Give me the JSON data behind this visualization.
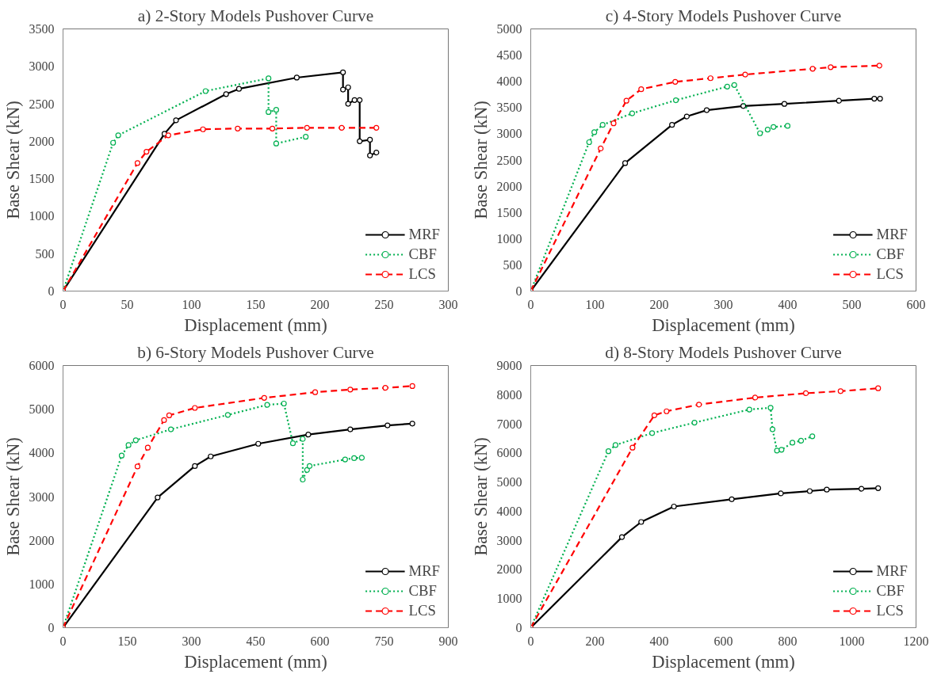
{
  "chart_data": [
    {
      "type": "line",
      "title": "a) 2-Story Models Pushover Curve",
      "xlabel": "Displacement (mm)",
      "ylabel": "Base Shear (kN)",
      "xlim": [
        0,
        300
      ],
      "xticks": [
        0,
        50,
        100,
        150,
        200,
        250,
        300
      ],
      "ylim": [
        0,
        3500
      ],
      "yticks": [
        0,
        500,
        1000,
        1500,
        2000,
        2500,
        3000,
        3500
      ],
      "grid": false,
      "legend": "bottom right",
      "marker": "circle",
      "series": [
        {
          "name": "MRF",
          "color": "#000000",
          "line_style": "solid",
          "x": [
            0,
            79,
            88,
            127,
            137,
            182,
            218,
            218,
            222,
            222,
            227,
            231,
            231,
            239,
            239,
            244
          ],
          "values": [
            0,
            2100,
            2280,
            2630,
            2700,
            2850,
            2920,
            2690,
            2720,
            2500,
            2550,
            2550,
            2000,
            2020,
            1810,
            1850
          ]
        },
        {
          "name": "CBF",
          "color": "#00b050",
          "line_style": "dotted",
          "x": [
            0,
            39,
            43,
            111,
            160,
            160,
            166,
            166,
            189
          ],
          "values": [
            0,
            1980,
            2080,
            2670,
            2840,
            2390,
            2420,
            1970,
            2060
          ]
        },
        {
          "name": "LCS",
          "color": "#ff0000",
          "line_style": "dashed",
          "x": [
            0,
            58,
            65,
            82,
            109,
            136,
            163,
            190,
            217,
            244
          ],
          "values": [
            0,
            1710,
            1860,
            2080,
            2160,
            2170,
            2170,
            2180,
            2180,
            2180
          ]
        }
      ]
    },
    {
      "type": "line",
      "title": "c) 4-Story Models Pushover Curve",
      "xlabel": "Displacement (mm)",
      "ylabel": "Base Shear (kN)",
      "xlim": [
        0,
        600
      ],
      "xticks": [
        0,
        100,
        200,
        300,
        400,
        500,
        600
      ],
      "ylim": [
        0,
        5000
      ],
      "yticks": [
        0,
        500,
        1000,
        1500,
        2000,
        2500,
        3000,
        3500,
        4000,
        4500,
        5000
      ],
      "grid": false,
      "legend": "bottom right",
      "marker": "circle",
      "series": [
        {
          "name": "MRF",
          "color": "#000000",
          "line_style": "solid",
          "x": [
            0,
            147,
            220,
            243,
            274,
            331,
            395,
            480,
            535,
            544
          ],
          "values": [
            0,
            2440,
            3170,
            3330,
            3450,
            3530,
            3570,
            3630,
            3670,
            3670
          ]
        },
        {
          "name": "CBF",
          "color": "#00b050",
          "line_style": "dotted",
          "x": [
            0,
            91,
            99,
            112,
            158,
            226,
            306,
            317,
            357,
            369,
            378,
            400
          ],
          "values": [
            0,
            2840,
            3030,
            3170,
            3390,
            3640,
            3900,
            3930,
            3010,
            3080,
            3130,
            3150
          ]
        },
        {
          "name": "LCS",
          "color": "#ff0000",
          "line_style": "dashed",
          "x": [
            0,
            109,
            129,
            149,
            172,
            225,
            280,
            334,
            439,
            467,
            543
          ],
          "values": [
            0,
            2720,
            3200,
            3630,
            3850,
            3990,
            4060,
            4130,
            4240,
            4270,
            4300
          ]
        }
      ]
    },
    {
      "type": "line",
      "title": "b) 6-Story Models Pushover Curve",
      "xlabel": "Displacement (mm)",
      "ylabel": "Base Shear (kN)",
      "xlim": [
        0,
        900
      ],
      "xticks": [
        0,
        150,
        300,
        450,
        600,
        750,
        900
      ],
      "ylim": [
        0,
        6000
      ],
      "yticks": [
        0,
        1000,
        2000,
        3000,
        4000,
        5000,
        6000
      ],
      "grid": false,
      "legend": "bottom right",
      "marker": "circle",
      "series": [
        {
          "name": "MRF",
          "color": "#000000",
          "line_style": "solid",
          "x": [
            0,
            221,
            308,
            345,
            456,
            573,
            671,
            758,
            816
          ],
          "values": [
            0,
            2980,
            3700,
            3920,
            4210,
            4420,
            4540,
            4630,
            4670
          ]
        },
        {
          "name": "CBF",
          "color": "#00b050",
          "line_style": "dotted",
          "x": [
            0,
            137,
            153,
            170,
            252,
            385,
            477,
            516,
            537,
            560,
            560,
            570,
            576,
            659,
            680,
            698
          ],
          "values": [
            0,
            3940,
            4180,
            4290,
            4540,
            4870,
            5100,
            5130,
            4220,
            4320,
            3390,
            3610,
            3700,
            3850,
            3880,
            3890
          ]
        },
        {
          "name": "LCS",
          "color": "#ff0000",
          "line_style": "dashed",
          "x": [
            0,
            174,
            198,
            236,
            248,
            308,
            470,
            589,
            671,
            753,
            816
          ],
          "values": [
            0,
            3690,
            4120,
            4750,
            4860,
            5030,
            5260,
            5390,
            5450,
            5490,
            5530
          ]
        }
      ]
    },
    {
      "type": "line",
      "title": "d) 8-Story Models Pushover Curve",
      "xlabel": "Displacement (mm)",
      "ylabel": "Base Shear (kN)",
      "xlim": [
        0,
        1200
      ],
      "xticks": [
        0,
        200,
        400,
        600,
        800,
        1000,
        1200
      ],
      "ylim": [
        0,
        9000
      ],
      "yticks": [
        0,
        1000,
        2000,
        3000,
        4000,
        5000,
        6000,
        7000,
        8000,
        9000
      ],
      "grid": false,
      "legend": "bottom right",
      "marker": "circle",
      "series": [
        {
          "name": "MRF",
          "color": "#000000",
          "line_style": "solid",
          "x": [
            0,
            284,
            344,
            446,
            626,
            779,
            869,
            922,
            1030,
            1082
          ],
          "values": [
            0,
            3110,
            3630,
            4160,
            4410,
            4610,
            4690,
            4740,
            4770,
            4790
          ]
        },
        {
          "name": "CBF",
          "color": "#00b050",
          "line_style": "dotted",
          "x": [
            0,
            242,
            264,
            378,
            510,
            681,
            747,
            753,
            767,
            781,
            815,
            842,
            877
          ],
          "values": [
            0,
            6060,
            6270,
            6680,
            7040,
            7490,
            7550,
            6810,
            6080,
            6110,
            6350,
            6420,
            6570
          ]
        },
        {
          "name": "LCS",
          "color": "#ff0000",
          "line_style": "dashed",
          "x": [
            0,
            317,
            385,
            423,
            524,
            699,
            857,
            965,
            1082
          ],
          "values": [
            0,
            6180,
            7290,
            7430,
            7660,
            7900,
            8050,
            8120,
            8220
          ]
        }
      ]
    }
  ]
}
